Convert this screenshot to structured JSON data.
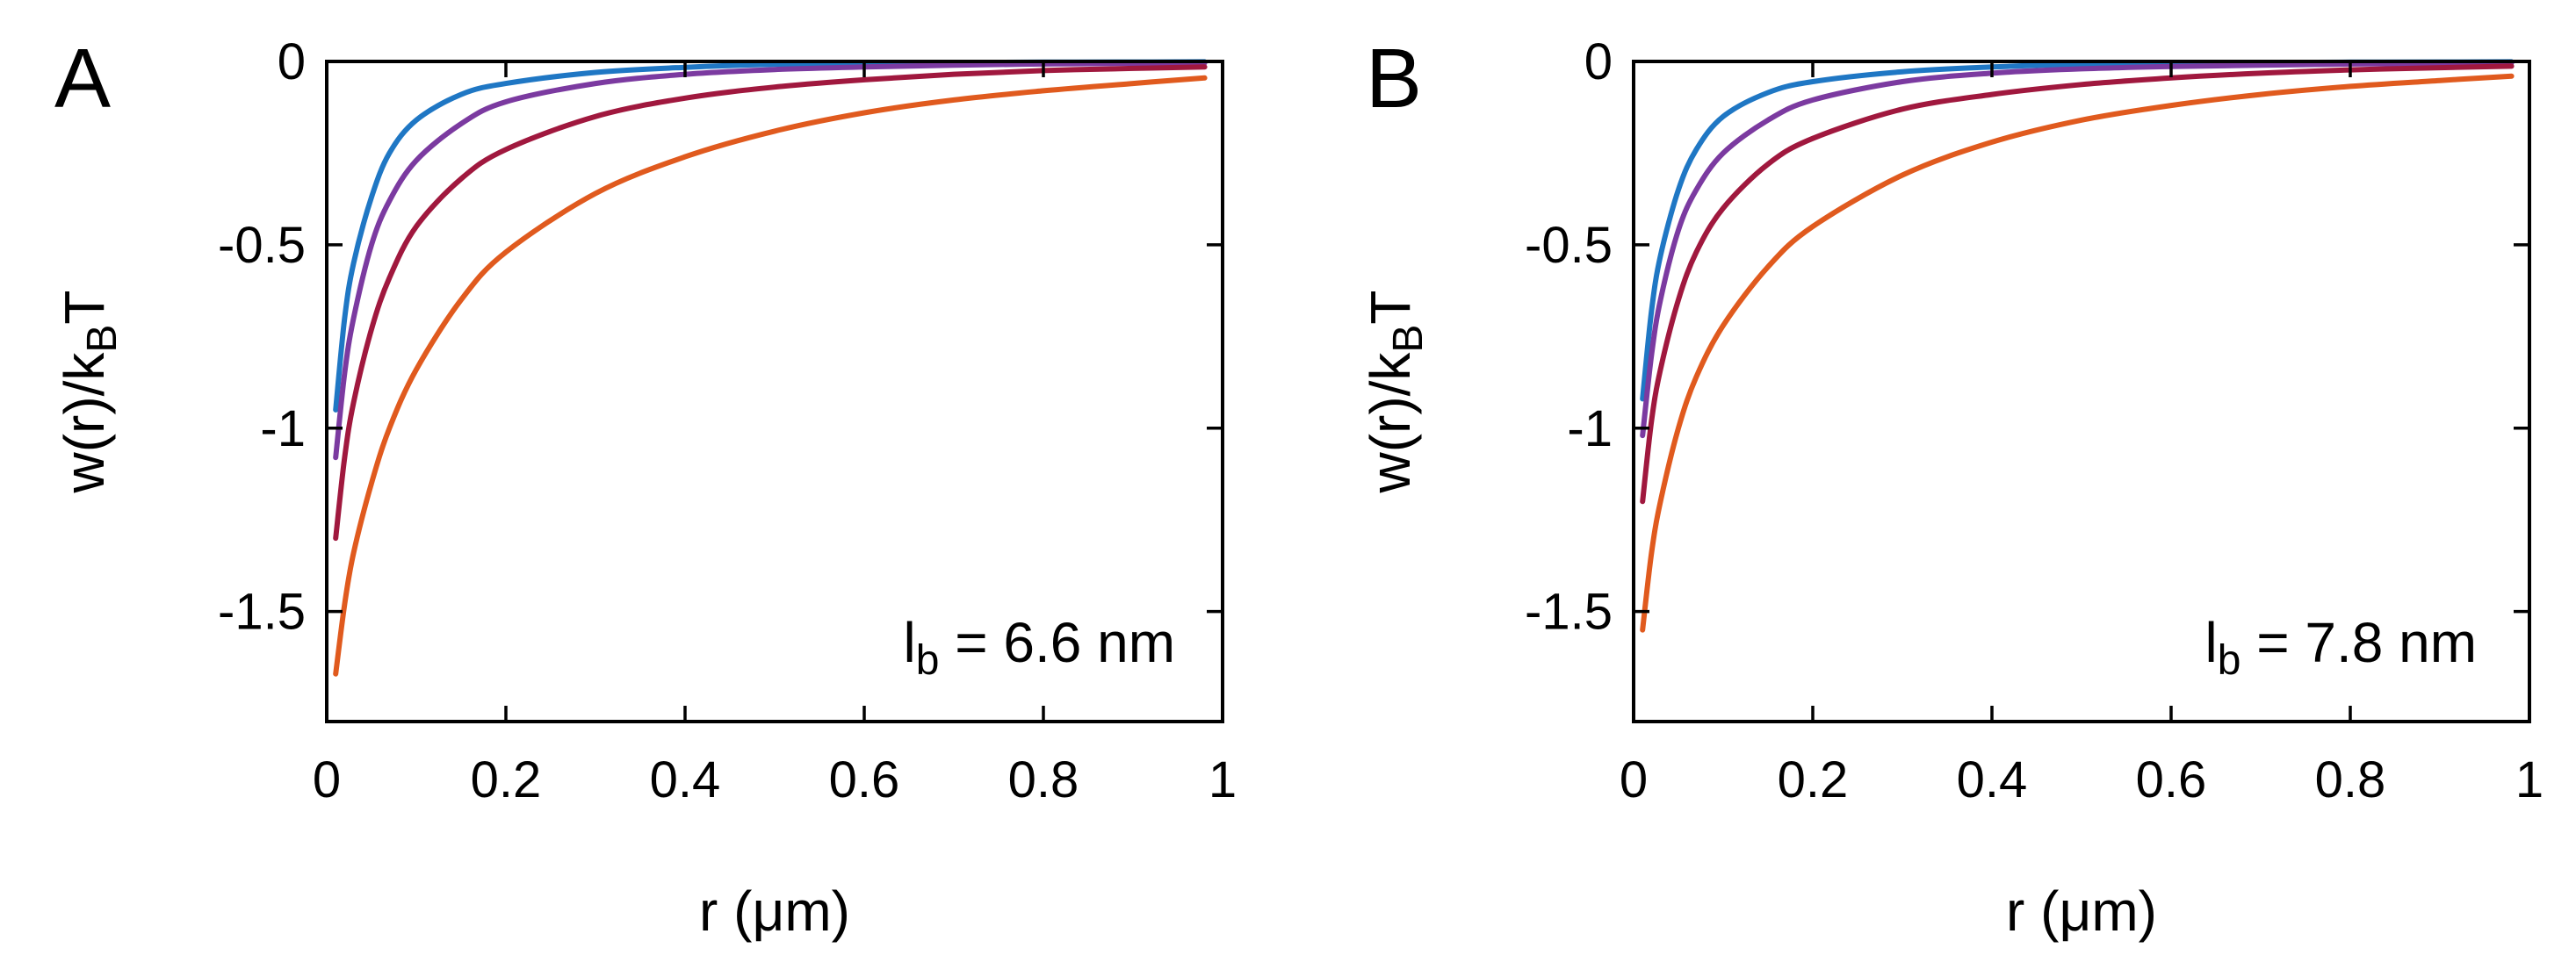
{
  "chart_data": [
    {
      "type": "line",
      "panel": "A",
      "xlabel": "r (μm)",
      "ylabel": "w(r)/kBT",
      "ylabel_parts": {
        "main": "w(r)/k",
        "sub": "B",
        "tail": "T"
      },
      "xlim": [
        0,
        1
      ],
      "ylim": [
        -1.8,
        0
      ],
      "xticks": [
        0,
        0.2,
        0.4,
        0.6,
        0.8,
        1
      ],
      "xtick_labels": [
        "0",
        "0.2",
        "0.4",
        "0.6",
        "0.8",
        "1"
      ],
      "yticks": [
        0,
        -0.5,
        -1,
        -1.5
      ],
      "ytick_labels": [
        "0",
        "-0.5",
        "-1",
        "-1.5"
      ],
      "annotation": "lb = 6.6 nm",
      "annotation_parts": {
        "main": "l",
        "sub": "b",
        "tail": " = 6.6 nm"
      },
      "x": [
        0.01,
        0.02,
        0.03,
        0.05,
        0.07,
        0.1,
        0.15,
        0.2,
        0.3,
        0.4,
        0.5,
        0.6,
        0.7,
        0.8,
        0.9,
        0.98
      ],
      "series": [
        {
          "name": "blue",
          "color": "#1f77c4",
          "values": [
            -0.95,
            -0.7,
            -0.55,
            -0.37,
            -0.25,
            -0.16,
            -0.09,
            -0.06,
            -0.03,
            -0.016,
            -0.008,
            -0.005,
            -0.003,
            -0.002,
            -0.0015,
            -0.001
          ]
        },
        {
          "name": "purple",
          "color": "#7b3aa0",
          "values": [
            -1.08,
            -0.85,
            -0.7,
            -0.5,
            -0.38,
            -0.27,
            -0.17,
            -0.11,
            -0.06,
            -0.035,
            -0.022,
            -0.015,
            -0.01,
            -0.007,
            -0.005,
            -0.004
          ]
        },
        {
          "name": "crimson",
          "color": "#a0183e",
          "values": [
            -1.3,
            -1.08,
            -0.93,
            -0.73,
            -0.59,
            -0.45,
            -0.32,
            -0.24,
            -0.15,
            -0.1,
            -0.07,
            -0.05,
            -0.035,
            -0.025,
            -0.019,
            -0.015
          ]
        },
        {
          "name": "orange",
          "color": "#e05a1e",
          "values": [
            -1.67,
            -1.48,
            -1.34,
            -1.15,
            -1.0,
            -0.84,
            -0.65,
            -0.52,
            -0.36,
            -0.26,
            -0.19,
            -0.14,
            -0.105,
            -0.08,
            -0.06,
            -0.045
          ]
        }
      ]
    },
    {
      "type": "line",
      "panel": "B",
      "xlabel": "r (μm)",
      "ylabel": "w(r)/kBT",
      "ylabel_parts": {
        "main": "w(r)/k",
        "sub": "B",
        "tail": "T"
      },
      "xlim": [
        0,
        1
      ],
      "ylim": [
        -1.8,
        0
      ],
      "xticks": [
        0,
        0.2,
        0.4,
        0.6,
        0.8,
        1
      ],
      "xtick_labels": [
        "0",
        "0.2",
        "0.4",
        "0.6",
        "0.8",
        "1"
      ],
      "yticks": [
        0,
        -0.5,
        -1,
        -1.5
      ],
      "ytick_labels": [
        "0",
        "-0.5",
        "-1",
        "-1.5"
      ],
      "annotation": "lb = 7.8 nm",
      "annotation_parts": {
        "main": "l",
        "sub": "b",
        "tail": " = 7.8 nm"
      },
      "x": [
        0.01,
        0.02,
        0.03,
        0.05,
        0.07,
        0.1,
        0.15,
        0.2,
        0.3,
        0.4,
        0.5,
        0.6,
        0.7,
        0.8,
        0.9,
        0.98
      ],
      "series": [
        {
          "name": "blue",
          "color": "#1f77c4",
          "values": [
            -0.92,
            -0.68,
            -0.53,
            -0.35,
            -0.24,
            -0.15,
            -0.085,
            -0.055,
            -0.028,
            -0.015,
            -0.008,
            -0.005,
            -0.003,
            -0.002,
            -0.0015,
            -0.001
          ]
        },
        {
          "name": "purple",
          "color": "#7b3aa0",
          "values": [
            -1.02,
            -0.8,
            -0.65,
            -0.46,
            -0.35,
            -0.25,
            -0.16,
            -0.105,
            -0.055,
            -0.032,
            -0.02,
            -0.014,
            -0.01,
            -0.007,
            -0.005,
            -0.004
          ]
        },
        {
          "name": "crimson",
          "color": "#a0183e",
          "values": [
            -1.2,
            -0.98,
            -0.84,
            -0.65,
            -0.52,
            -0.4,
            -0.28,
            -0.21,
            -0.13,
            -0.09,
            -0.063,
            -0.045,
            -0.032,
            -0.023,
            -0.017,
            -0.013
          ]
        },
        {
          "name": "orange",
          "color": "#e05a1e",
          "values": [
            -1.55,
            -1.34,
            -1.2,
            -1.0,
            -0.86,
            -0.72,
            -0.56,
            -0.45,
            -0.31,
            -0.22,
            -0.16,
            -0.12,
            -0.09,
            -0.068,
            -0.052,
            -0.04
          ]
        }
      ]
    }
  ]
}
